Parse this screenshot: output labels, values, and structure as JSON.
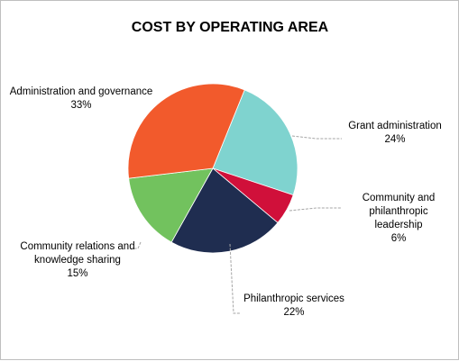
{
  "chart_data": {
    "type": "pie",
    "title": "COST BY OPERATING AREA",
    "slices": [
      {
        "label_lines": [
          "Grant administration"
        ],
        "label_pct": "24%",
        "value": 24,
        "color": "#7fd3cf"
      },
      {
        "label_lines": [
          "Community and",
          "philanthropic",
          "leadership"
        ],
        "label_pct": "6%",
        "value": 6,
        "color": "#d0103a"
      },
      {
        "label_lines": [
          "Philanthropic services"
        ],
        "label_pct": "22%",
        "value": 22,
        "color": "#1f2d50"
      },
      {
        "label_lines": [
          "Community relations and",
          "knowledge sharing"
        ],
        "label_pct": "15%",
        "value": 15,
        "color": "#72c25e"
      },
      {
        "label_lines": [
          "Administration and governance"
        ],
        "label_pct": "33%",
        "value": 33,
        "color": "#f25a2c"
      }
    ],
    "start_angle_deg": 68,
    "legend": "none"
  }
}
